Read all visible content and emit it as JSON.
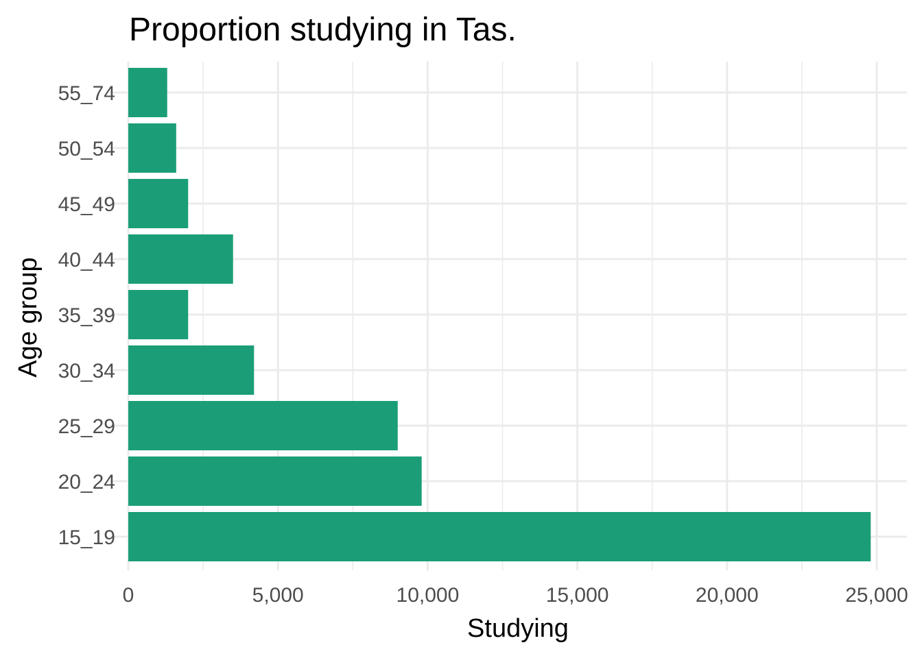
{
  "chart_data": {
    "type": "bar",
    "orientation": "horizontal",
    "title": "Proportion studying in Tas.",
    "xlabel": "Studying",
    "ylabel": "Age group",
    "categories": [
      "15_19",
      "20_24",
      "25_29",
      "30_34",
      "35_39",
      "40_44",
      "45_49",
      "50_54",
      "55_74"
    ],
    "values": [
      24800,
      9800,
      9000,
      4200,
      2000,
      3500,
      2000,
      1600,
      1300
    ],
    "xlim": [
      0,
      25000
    ],
    "xticks": [
      0,
      5000,
      10000,
      15000,
      20000,
      25000
    ],
    "xtick_labels": [
      "0",
      "5,000",
      "10,000",
      "15,000",
      "20,000",
      "25,000"
    ],
    "bar_color": "#1b9e77",
    "grid": true,
    "legend": "none"
  }
}
